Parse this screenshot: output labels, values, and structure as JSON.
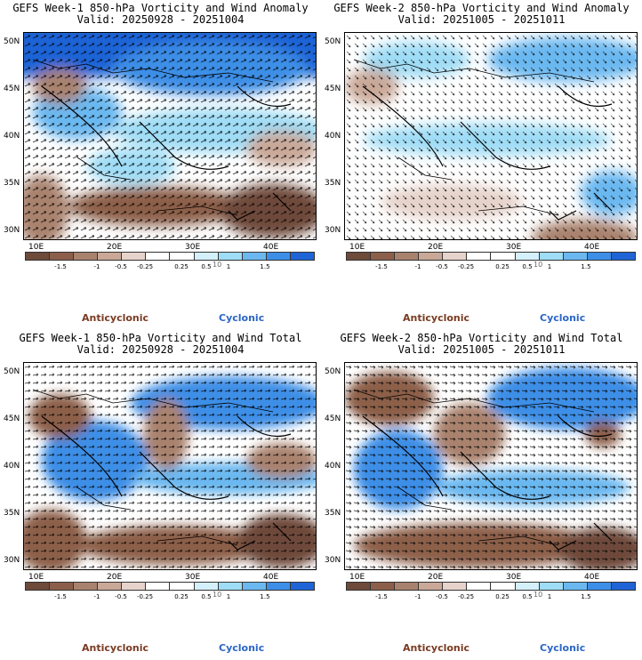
{
  "colors": {
    "scale": [
      "#6e4a3a",
      "#8c5f4a",
      "#a9826e",
      "#c9a898",
      "#e6d3cb",
      "#ffffff",
      "#ffffff",
      "#d4f0fa",
      "#9fdcf5",
      "#6bb8f0",
      "#3d8ee6",
      "#1e64d6"
    ],
    "anticyclonic": "#7a3b22",
    "cyclonic": "#2b66c6"
  },
  "colorbar": {
    "tick_labels": [
      "-1.5",
      "-1",
      "-0.5",
      "-0.25",
      "0.25",
      "0.5",
      "1",
      "1.5"
    ],
    "ref_vector": "10"
  },
  "axes": {
    "lat_labels": [
      "50N",
      "45N",
      "40N",
      "35N",
      "30N"
    ],
    "lon_labels": [
      "10E",
      "20E",
      "30E",
      "40E"
    ]
  },
  "legend": {
    "anticyclonic": "Anticyclonic",
    "cyclonic": "Cyclonic"
  },
  "panels": [
    {
      "title": "GEFS Week-1 850-hPa Vorticity and Wind Anomaly",
      "valid": "Valid: 20250928 - 20251004"
    },
    {
      "title": "GEFS Week-2 850-hPa Vorticity and Wind Anomaly",
      "valid": "Valid: 20251005 - 20251011"
    },
    {
      "title": "GEFS Week-1 850-hPa Vorticity and Wind Total",
      "valid": "Valid: 20250928 - 20251004"
    },
    {
      "title": "GEFS Week-2 850-hPa Vorticity and Wind Total",
      "valid": "Valid: 20251005 - 20251011"
    }
  ]
}
